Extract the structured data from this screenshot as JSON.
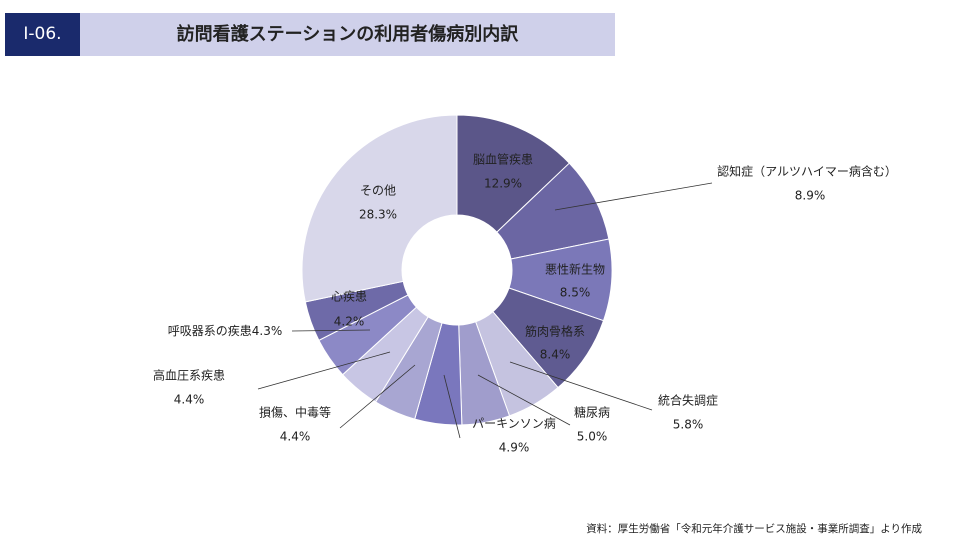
{
  "header": {
    "badge": "Ⅰ-06.",
    "title": "訪問看護ステーションの利用者傷病別内訳"
  },
  "source": "資料：厚生労働省「令和元年介護サービス施設・事業所調査」より作成",
  "chart_data": {
    "type": "donut",
    "categories": [
      "脳血管疾患",
      "認知症（アルツハイマー病含む）",
      "悪性新生物",
      "筋肉骨格系",
      "統合失調症",
      "糖尿病",
      "パーキンソン病",
      "損傷、中毒等",
      "高血圧系疾患",
      "呼吸器系の疾患",
      "心疾患",
      "その他"
    ],
    "values": [
      12.9,
      8.9,
      8.5,
      8.4,
      5.8,
      5.0,
      4.9,
      4.4,
      4.4,
      4.3,
      4.2,
      28.3
    ],
    "value_labels": [
      "12.9%",
      "8.9%",
      "8.5%",
      "8.4%",
      "5.8%",
      "5.0%",
      "4.9%",
      "4.4%",
      "4.4%",
      "4.3%",
      "4.2%",
      "28.3%"
    ],
    "colors": [
      "#5b5689",
      "#6b66a3",
      "#7b78b8",
      "#5f5b91",
      "#c5c3e0",
      "#a09dcc",
      "#7a77bd",
      "#a8a6d2",
      "#c8c6e4",
      "#8c89c6",
      "#6e6aa8",
      "#d8d7ea"
    ]
  }
}
